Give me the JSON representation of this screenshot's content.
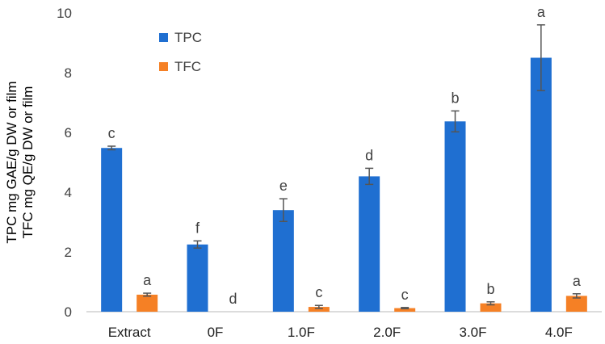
{
  "chart_data": {
    "type": "bar",
    "title": "",
    "ylabel_lines": [
      "TPC mg GAE/g DW or film",
      "TFC mg QE/g DW or film"
    ],
    "xlabel": "",
    "ylim": [
      0,
      10
    ],
    "yticks": [
      0,
      2,
      4,
      6,
      8,
      10
    ],
    "categories": [
      "Extract",
      "0F",
      "1.0F",
      "2.0F",
      "3.0F",
      "4.0F"
    ],
    "legend_position": "top-left",
    "grid": false,
    "series": [
      {
        "name": "TPC",
        "color": "#1f6fd1",
        "values": [
          5.48,
          2.25,
          3.4,
          4.53,
          6.37,
          8.5
        ],
        "errors": [
          0.06,
          0.12,
          0.38,
          0.27,
          0.35,
          1.1
        ],
        "labels": [
          "c",
          "f",
          "e",
          "d",
          "b",
          "a"
        ]
      },
      {
        "name": "TFC",
        "color": "#f58025",
        "values": [
          0.57,
          0.0,
          0.16,
          0.12,
          0.28,
          0.53
        ],
        "errors": [
          0.05,
          0.0,
          0.05,
          0.02,
          0.05,
          0.07
        ],
        "labels": [
          "a",
          "d",
          "c",
          "c",
          "b",
          "a"
        ]
      }
    ]
  }
}
